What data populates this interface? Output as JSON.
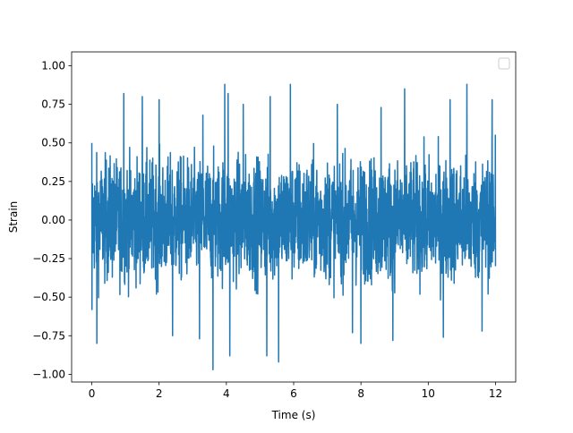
{
  "chart_data": {
    "type": "line",
    "title": "",
    "xlabel": "Time (s)",
    "ylabel": "Strain",
    "xlim": [
      -0.6,
      12.6
    ],
    "ylim": [
      -1.05,
      1.09
    ],
    "x_ticks": [
      0,
      2,
      4,
      6,
      8,
      10,
      12
    ],
    "x_tick_labels": [
      "0",
      "2",
      "4",
      "6",
      "8",
      "10",
      "12"
    ],
    "y_ticks": [
      -1.0,
      -0.75,
      -0.5,
      -0.25,
      0.0,
      0.25,
      0.5,
      0.75,
      1.0
    ],
    "y_tick_labels": [
      "−1.00",
      "−0.75",
      "−0.50",
      "−0.25",
      "0.00",
      "0.25",
      "0.50",
      "0.75",
      "1.00"
    ],
    "grid": false,
    "legend": {
      "placement": "top-right",
      "entries": []
    },
    "series": [
      {
        "color": "#1f77b4",
        "x_range": [
          0,
          12
        ],
        "sample_count": 2400,
        "band_core": [
          -0.45,
          0.45
        ],
        "observed_extremes": {
          "max": 1.0,
          "max_at": 8.0,
          "min": -0.97,
          "min_at": 3.6
        },
        "notable_peaks": [
          {
            "x": 0.95,
            "y": 0.82
          },
          {
            "x": 1.5,
            "y": 0.8
          },
          {
            "x": 2.0,
            "y": 0.78
          },
          {
            "x": 3.3,
            "y": 0.68
          },
          {
            "x": 3.95,
            "y": 0.88
          },
          {
            "x": 4.05,
            "y": 0.82
          },
          {
            "x": 4.5,
            "y": 0.75
          },
          {
            "x": 5.3,
            "y": 0.8
          },
          {
            "x": 5.9,
            "y": 0.88
          },
          {
            "x": 7.3,
            "y": 0.75
          },
          {
            "x": 8.0,
            "y": 1.0
          },
          {
            "x": 8.6,
            "y": 0.73
          },
          {
            "x": 9.3,
            "y": 0.85
          },
          {
            "x": 10.65,
            "y": 0.78
          },
          {
            "x": 11.15,
            "y": 0.88
          },
          {
            "x": 11.9,
            "y": 0.78
          }
        ],
        "notable_troughs": [
          {
            "x": 0.15,
            "y": -0.8
          },
          {
            "x": 2.4,
            "y": -0.75
          },
          {
            "x": 3.2,
            "y": -0.77
          },
          {
            "x": 3.6,
            "y": -0.97
          },
          {
            "x": 4.1,
            "y": -0.88
          },
          {
            "x": 5.2,
            "y": -0.88
          },
          {
            "x": 5.55,
            "y": -0.92
          },
          {
            "x": 7.75,
            "y": -0.73
          },
          {
            "x": 8.0,
            "y": -0.8
          },
          {
            "x": 8.95,
            "y": -0.78
          },
          {
            "x": 10.45,
            "y": -0.76
          },
          {
            "x": 11.6,
            "y": -0.72
          }
        ]
      }
    ]
  }
}
